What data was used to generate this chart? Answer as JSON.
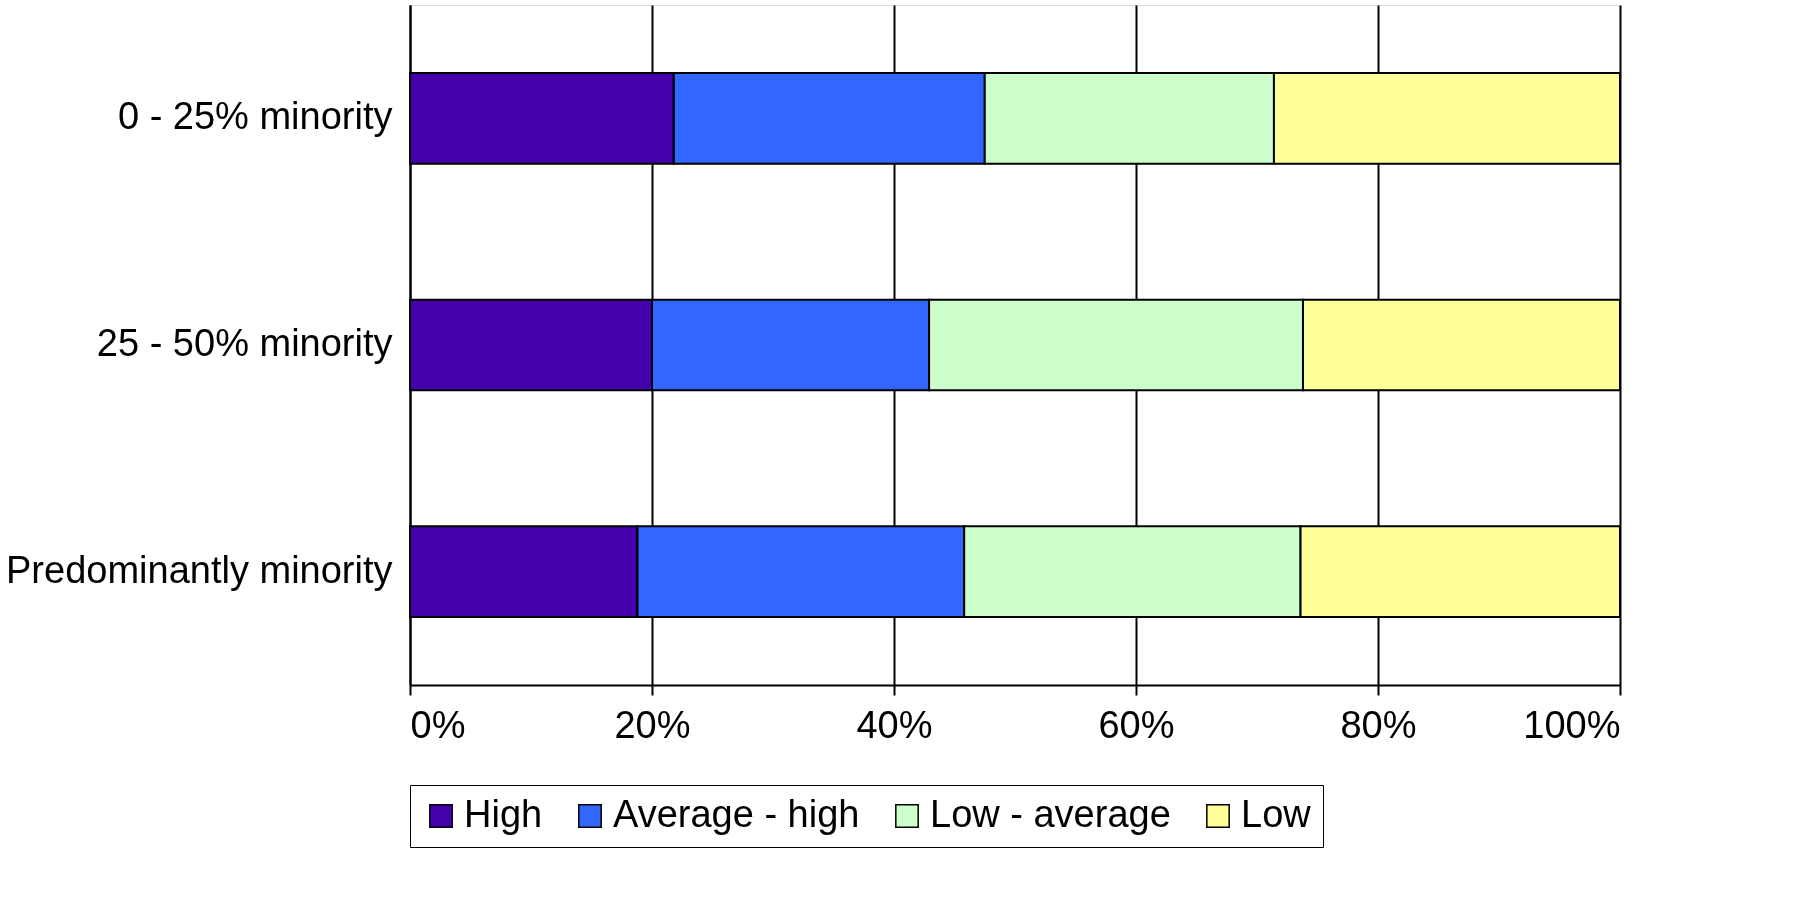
{
  "chart_data": {
    "type": "bar",
    "orientation": "horizontal",
    "stacked": true,
    "categories": [
      "0 - 25% minority",
      "25 - 50% minority",
      "Predominantly minority"
    ],
    "series": [
      {
        "name": "High",
        "color": "#4400aa",
        "values": [
          21.8,
          20.0,
          18.8
        ]
      },
      {
        "name": "Average - high",
        "color": "#3366ff",
        "values": [
          25.7,
          22.9,
          27.0
        ]
      },
      {
        "name": "Low - average",
        "color": "#ccffcc",
        "values": [
          23.9,
          30.9,
          27.8
        ]
      },
      {
        "name": "Low",
        "color": "#ffff99",
        "values": [
          28.6,
          26.2,
          26.4
        ]
      }
    ],
    "xlim": [
      0,
      100
    ],
    "xticks": [
      {
        "value": 0,
        "label": "0%"
      },
      {
        "value": 20,
        "label": "20%"
      },
      {
        "value": 40,
        "label": "40%"
      },
      {
        "value": 60,
        "label": "60%"
      },
      {
        "value": 80,
        "label": "80%"
      },
      {
        "value": 100,
        "label": "100%"
      }
    ],
    "grid": "x",
    "legend": "bottom"
  }
}
